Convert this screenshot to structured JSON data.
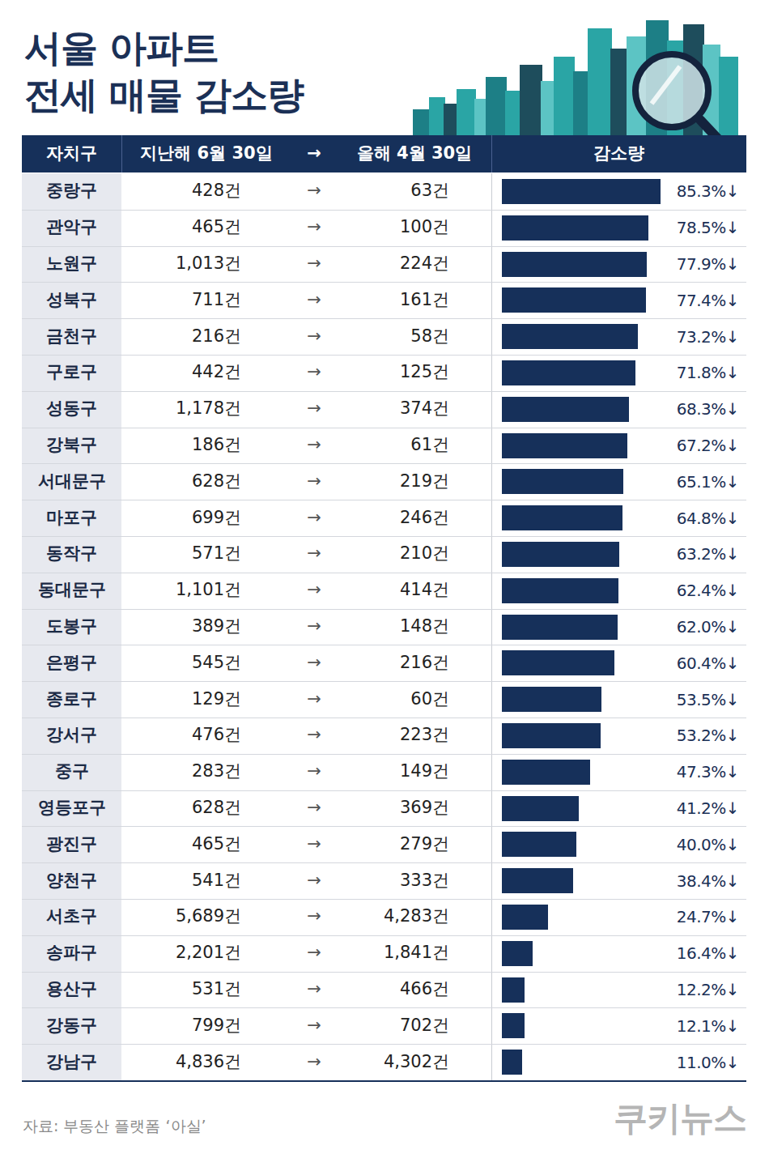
{
  "chart_data": {
    "type": "bar",
    "orientation": "horizontal",
    "title": "서울 아파트 전세 매물 감소량",
    "columns": [
      "자치구",
      "지난해 6월 30일",
      "→",
      "올해 4월 30일",
      "감소량"
    ],
    "categories": [
      "중랑구",
      "관악구",
      "노원구",
      "성북구",
      "금천구",
      "구로구",
      "성동구",
      "강북구",
      "서대문구",
      "마포구",
      "동작구",
      "동대문구",
      "도봉구",
      "은평구",
      "종로구",
      "강서구",
      "중구",
      "영등포구",
      "광진구",
      "양천구",
      "서초구",
      "송파구",
      "용산구",
      "강동구",
      "강남구"
    ],
    "from": [
      "428건",
      "465건",
      "1,013건",
      "711건",
      "216건",
      "442건",
      "1,178건",
      "186건",
      "628건",
      "699건",
      "571건",
      "1,101건",
      "389건",
      "545건",
      "129건",
      "476건",
      "283건",
      "628건",
      "465건",
      "541건",
      "5,689건",
      "2,201건",
      "531건",
      "799건",
      "4,836건"
    ],
    "to": [
      "63건",
      "100건",
      "224건",
      "161건",
      "58건",
      "125건",
      "374건",
      "61건",
      "219건",
      "246건",
      "210건",
      "414건",
      "148건",
      "216건",
      "60건",
      "223건",
      "149건",
      "369건",
      "279건",
      "333건",
      "4,283건",
      "1,841건",
      "466건",
      "702건",
      "4,302건"
    ],
    "values": [
      85.3,
      78.5,
      77.9,
      77.4,
      73.2,
      71.8,
      68.3,
      67.2,
      65.1,
      64.8,
      63.2,
      62.4,
      62,
      60.4,
      53.5,
      53.2,
      47.3,
      41.2,
      40,
      38.4,
      24.7,
      16.4,
      12.2,
      12.1,
      11
    ],
    "value_labels": [
      "85.3%↓",
      "78.5%↓",
      "77.9%↓",
      "77.4%↓",
      "73.2%↓",
      "71.8%↓",
      "68.3%↓",
      "67.2%↓",
      "65.1%↓",
      "64.8%↓",
      "63.2%↓",
      "62.4%↓",
      "62.0%↓",
      "60.4%↓",
      "53.5%↓",
      "53.2%↓",
      "47.3%↓",
      "41.2%↓",
      "40.0%↓",
      "38.4%↓",
      "24.7%↓",
      "16.4%↓",
      "12.2%↓",
      "12.1%↓",
      "11.0%↓"
    ],
    "xlim": [
      0,
      100
    ],
    "color": "#16305a",
    "data_labels": true,
    "tick_labels": false,
    "grid": false,
    "source": "자료: 부동산 플랫폼 ‘아실’",
    "brand": "쿠키뉴스"
  }
}
